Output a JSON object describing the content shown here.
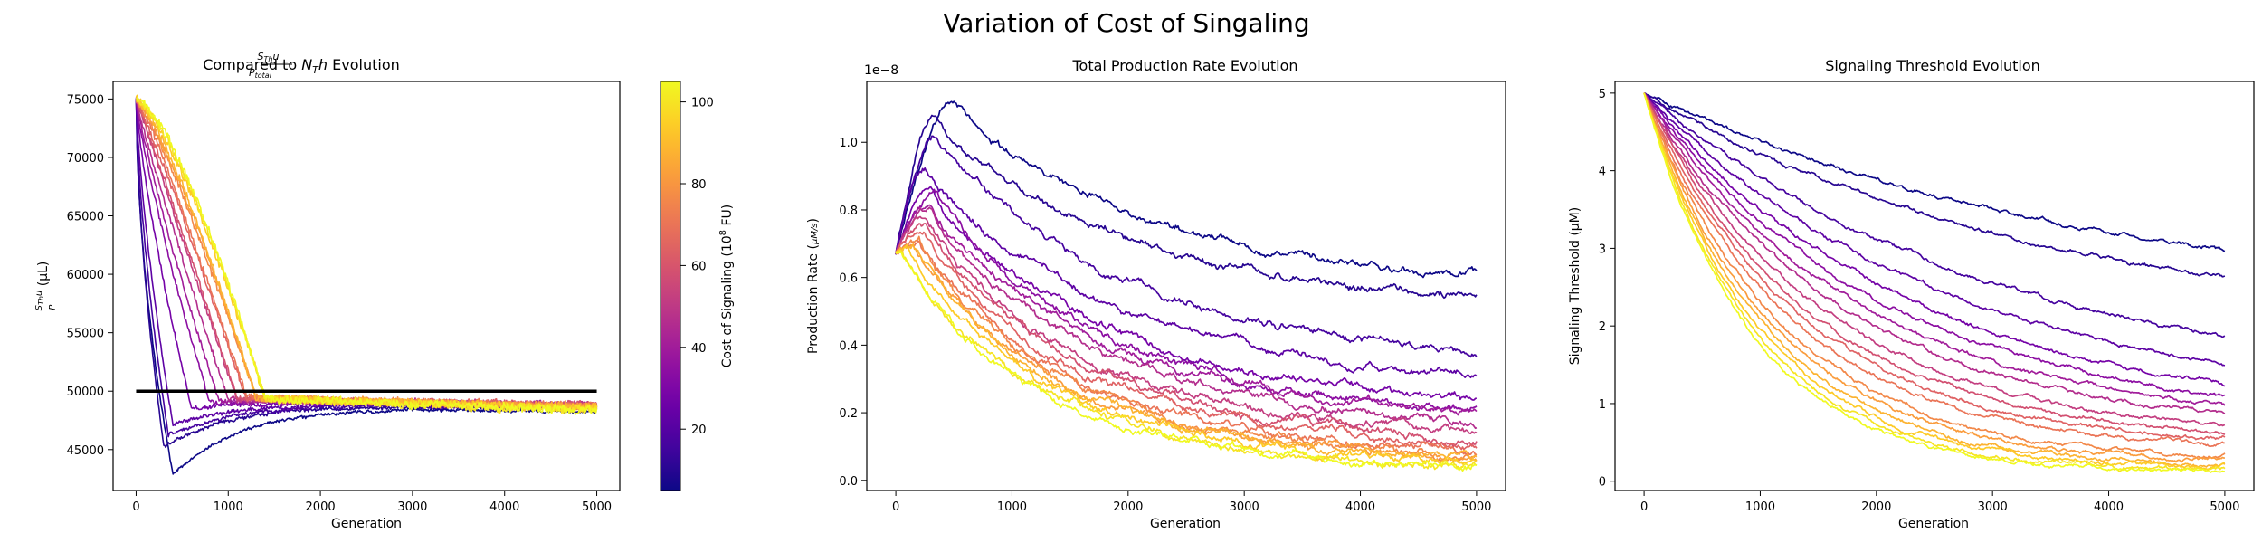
{
  "figure": {
    "suptitle": "Variation of Cost of Singaling"
  },
  "colors": {
    "colormap": "plasma",
    "colormap_stops": [
      "#0d0887",
      "#46039f",
      "#7201a8",
      "#9c179e",
      "#bd3786",
      "#d8576b",
      "#ed7953",
      "#fb9f3a",
      "#fdca26",
      "#f0f921"
    ],
    "target_line": "#000000",
    "axes": "#000000"
  },
  "chart_data": [
    {
      "type": "line",
      "title_parts": {
        "frac_num": "S_Th u",
        "frac_den": "P_total",
        "mid": " Compared to ",
        "math": "N_T h",
        "tail": " Evolution"
      },
      "title_sub": {
        "num_sub": "Th",
        "den_sub": "total",
        "nt_sub": "T"
      },
      "xlabel": "Generation",
      "ylabel": "S_Th u / P  (μL)",
      "xlim": [
        -250,
        5250
      ],
      "ylim": [
        41500,
        76500
      ],
      "xticks": [
        0,
        1000,
        2000,
        3000,
        4000,
        5000
      ],
      "yticks": [
        45000,
        50000,
        55000,
        60000,
        65000,
        70000,
        75000
      ],
      "reference_line": {
        "y": 50000,
        "x": [
          0,
          5000
        ],
        "label": ""
      },
      "series_kind": "population",
      "start": 75000,
      "series": [
        {
          "cost": 5,
          "min_y": 42800,
          "min_x": 400,
          "final": 48200
        },
        {
          "cost": 10,
          "min_y": 45200,
          "min_x": 300,
          "final": 48500
        },
        {
          "cost": 16,
          "min_y": 46200,
          "min_x": 350,
          "final": 48600
        },
        {
          "cost": 22,
          "min_y": 47200,
          "min_x": 400,
          "final": 48700
        },
        {
          "cost": 28,
          "min_y": 48600,
          "min_x": 600,
          "final": 48800
        },
        {
          "cost": 34,
          "min_y": 49000,
          "min_x": 800,
          "final": 48800
        },
        {
          "cost": 40,
          "min_y": 49200,
          "min_x": 900,
          "final": 48900
        },
        {
          "cost": 46,
          "min_y": 49300,
          "min_x": 1000,
          "final": 48900
        },
        {
          "cost": 52,
          "min_y": 49300,
          "min_x": 1100,
          "final": 48800
        },
        {
          "cost": 58,
          "min_y": 49400,
          "min_x": 1100,
          "final": 48900
        },
        {
          "cost": 64,
          "min_y": 49400,
          "min_x": 1200,
          "final": 48800
        },
        {
          "cost": 70,
          "min_y": 49400,
          "min_x": 1200,
          "final": 48800
        },
        {
          "cost": 76,
          "min_y": 49400,
          "min_x": 1300,
          "final": 48700
        },
        {
          "cost": 82,
          "min_y": 49400,
          "min_x": 1300,
          "final": 48700
        },
        {
          "cost": 88,
          "min_y": 49400,
          "min_x": 1300,
          "final": 48600
        },
        {
          "cost": 94,
          "min_y": 49400,
          "min_x": 1400,
          "final": 48500
        },
        {
          "cost": 100,
          "min_y": 49300,
          "min_x": 1400,
          "final": 48400
        },
        {
          "cost": 105,
          "min_y": 49300,
          "min_x": 1400,
          "final": 48300
        }
      ],
      "colorbar": {
        "label": "Cost of Signaling (10^8 FU)",
        "label_main": "Cost of Signaling (10",
        "label_sup": "8",
        "label_tail": " FU)",
        "range": [
          5,
          105
        ],
        "ticks": [
          20,
          40,
          60,
          80,
          100
        ]
      }
    },
    {
      "type": "line",
      "title": "Total Production Rate Evolution",
      "xlabel": "Generation",
      "ylabel": "Production Rate (μM/s)",
      "offset_text": "1e−8",
      "xlim": [
        -250,
        5250
      ],
      "ylim": [
        -0.03,
        1.18
      ],
      "xticks": [
        0,
        1000,
        2000,
        3000,
        4000,
        5000
      ],
      "yticks": [
        0.0,
        0.2,
        0.4,
        0.6,
        0.8,
        1.0
      ],
      "ytick_labels": [
        "0.0",
        "0.2",
        "0.4",
        "0.6",
        "0.8",
        "1.0"
      ],
      "start": 0.67,
      "series": [
        {
          "cost": 5,
          "peak": 1.12,
          "peak_x": 500,
          "final": 0.61
        },
        {
          "cost": 10,
          "peak": 1.07,
          "peak_x": 350,
          "final": 0.54
        },
        {
          "cost": 16,
          "peak": 1.03,
          "peak_x": 350,
          "final": 0.38
        },
        {
          "cost": 22,
          "peak": 0.93,
          "peak_x": 250,
          "final": 0.31
        },
        {
          "cost": 28,
          "peak": 0.86,
          "peak_x": 300,
          "final": 0.24
        },
        {
          "cost": 34,
          "peak": 0.85,
          "peak_x": 350,
          "final": 0.21
        },
        {
          "cost": 40,
          "peak": 0.82,
          "peak_x": 300,
          "final": 0.2
        },
        {
          "cost": 46,
          "peak": 0.8,
          "peak_x": 300,
          "final": 0.17
        },
        {
          "cost": 52,
          "peak": 0.78,
          "peak_x": 250,
          "final": 0.14
        },
        {
          "cost": 58,
          "peak": 0.76,
          "peak_x": 250,
          "final": 0.12
        },
        {
          "cost": 64,
          "peak": 0.74,
          "peak_x": 250,
          "final": 0.1
        },
        {
          "cost": 70,
          "peak": 0.72,
          "peak_x": 200,
          "final": 0.08
        },
        {
          "cost": 76,
          "peak": 0.71,
          "peak_x": 200,
          "final": 0.07
        },
        {
          "cost": 82,
          "peak": 0.7,
          "peak_x": 150,
          "final": 0.06
        },
        {
          "cost": 88,
          "peak": 0.69,
          "peak_x": 150,
          "final": 0.06
        },
        {
          "cost": 94,
          "peak": 0.68,
          "peak_x": 100,
          "final": 0.05
        },
        {
          "cost": 100,
          "peak": 0.67,
          "peak_x": 50,
          "final": 0.04
        },
        {
          "cost": 105,
          "peak": 0.67,
          "peak_x": 50,
          "final": 0.03
        }
      ]
    },
    {
      "type": "line",
      "title": "Signaling Threshold Evolution",
      "xlabel": "Generation",
      "ylabel": "Signaling Threshold (μM)",
      "xlim": [
        -250,
        5250
      ],
      "ylim": [
        -0.12,
        5.15
      ],
      "xticks": [
        0,
        1000,
        2000,
        3000,
        4000,
        5000
      ],
      "yticks": [
        0,
        1,
        2,
        3,
        4,
        5
      ],
      "start": 5.0,
      "series": [
        {
          "cost": 5,
          "final": 2.97
        },
        {
          "cost": 10,
          "final": 2.62
        },
        {
          "cost": 16,
          "final": 1.87
        },
        {
          "cost": 22,
          "final": 1.52
        },
        {
          "cost": 28,
          "final": 1.25
        },
        {
          "cost": 34,
          "final": 1.1
        },
        {
          "cost": 40,
          "final": 0.98
        },
        {
          "cost": 46,
          "final": 0.88
        },
        {
          "cost": 52,
          "final": 0.72
        },
        {
          "cost": 58,
          "final": 0.62
        },
        {
          "cost": 64,
          "final": 0.55
        },
        {
          "cost": 70,
          "final": 0.48
        },
        {
          "cost": 76,
          "final": 0.32
        },
        {
          "cost": 82,
          "final": 0.27
        },
        {
          "cost": 88,
          "final": 0.22
        },
        {
          "cost": 94,
          "final": 0.18
        },
        {
          "cost": 100,
          "final": 0.15
        },
        {
          "cost": 105,
          "final": 0.12
        }
      ]
    }
  ]
}
